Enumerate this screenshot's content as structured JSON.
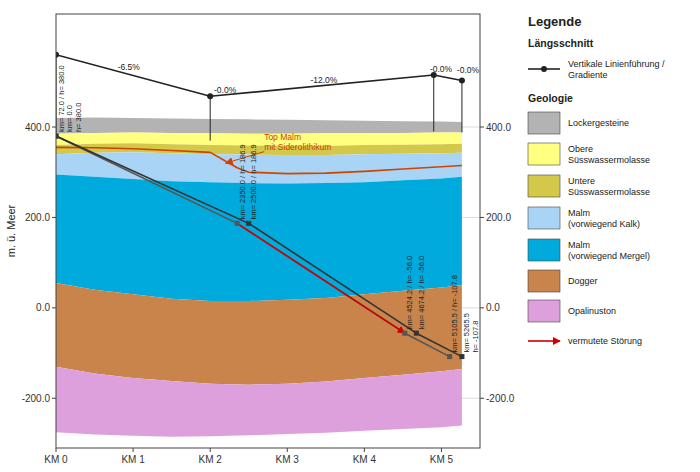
{
  "chart_data": {
    "type": "area",
    "ylabel": "m. ü. Meer",
    "xlim": [
      0,
      5500
    ],
    "ylim": [
      -310,
      650
    ],
    "xticks": [
      {
        "value": 0,
        "label": "KM 0"
      },
      {
        "value": 1000,
        "label": "KM 1"
      },
      {
        "value": 2000,
        "label": "KM 2"
      },
      {
        "value": 3000,
        "label": "KM 3"
      },
      {
        "value": 4000,
        "label": "KM 4"
      },
      {
        "value": 5000,
        "label": "KM 5"
      }
    ],
    "yticks": [
      {
        "value": -200,
        "label": "-200.0"
      },
      {
        "value": 0,
        "label": "0.0"
      },
      {
        "value": 200,
        "label": "200.0"
      },
      {
        "value": 400,
        "label": "400.0"
      }
    ],
    "y2lim": [
      -310,
      650
    ],
    "y2ticks": [
      {
        "value": -200,
        "label": "-200.0"
      },
      {
        "value": 0,
        "label": "0.0"
      },
      {
        "value": 200,
        "label": "200.0"
      },
      {
        "value": 400,
        "label": "400.0"
      }
    ],
    "grid": true,
    "legend": "right",
    "legend_title": "Legende",
    "series": [
      {
        "name": "Vertikale Linienführung /\nGradiente",
        "group": "Längsschnitt",
        "type": "line",
        "color": "#222222",
        "marker": "circle",
        "x": [
          0,
          2000,
          4900,
          5265.5
        ],
        "values": [
          560,
          468,
          515,
          503
        ],
        "base": [
          380,
          370,
          390,
          388
        ]
      },
      {
        "name": "Lockergesteine",
        "group": "Geologie",
        "type": "area",
        "color": "#b3b3b3",
        "x": [
          0,
          500,
          1000,
          1500,
          2000,
          2500,
          3000,
          3500,
          4000,
          4500,
          5000,
          5265
        ],
        "values": [
          420,
          421,
          420,
          419,
          418,
          417,
          416,
          415,
          414,
          413,
          412,
          411
        ],
        "base": [
          385,
          387,
          388,
          387,
          386,
          385,
          385,
          386,
          386,
          387,
          388,
          388
        ]
      },
      {
        "name": "Obere\nSüsswassermolasse",
        "group": "Geologie",
        "type": "area",
        "color": "#ffff80",
        "x": [
          0,
          500,
          1000,
          1500,
          2000,
          2500,
          3000,
          3500,
          4000,
          4500,
          5000,
          5265
        ],
        "values": [
          385,
          387,
          388,
          387,
          386,
          385,
          385,
          386,
          386,
          387,
          388,
          388
        ],
        "base": [
          360,
          363,
          364,
          362,
          360,
          359,
          358,
          358,
          360,
          361,
          362,
          363
        ]
      },
      {
        "name": "Untere\nSüsswassermolasse",
        "group": "Geologie",
        "type": "area",
        "color": "#d4c84a",
        "x": [
          0,
          500,
          1000,
          1500,
          2000,
          2500,
          3000,
          3500,
          4000,
          4500,
          5000,
          5265
        ],
        "values": [
          360,
          363,
          364,
          362,
          360,
          359,
          358,
          358,
          360,
          361,
          362,
          363
        ],
        "base": [
          340,
          343,
          344,
          342,
          340,
          339,
          338,
          338,
          340,
          341,
          342,
          343
        ]
      },
      {
        "name": "Malm\n(vorwiegend Kalk)",
        "group": "Geologie",
        "type": "area",
        "color": "#aad4f5",
        "x": [
          0,
          500,
          1000,
          1500,
          2000,
          2500,
          3000,
          3500,
          4000,
          4500,
          5000,
          5265
        ],
        "values": [
          340,
          343,
          344,
          342,
          340,
          339,
          338,
          338,
          340,
          341,
          342,
          343
        ],
        "base": [
          295,
          290,
          285,
          280,
          278,
          276,
          275,
          276,
          278,
          282,
          286,
          290
        ]
      },
      {
        "name": "Malm\n(vorwiegend Mergel)",
        "group": "Geologie",
        "type": "area",
        "color": "#00aadd",
        "x": [
          0,
          500,
          1000,
          1500,
          2000,
          2500,
          3000,
          3500,
          4000,
          4500,
          5000,
          5265
        ],
        "values": [
          295,
          290,
          285,
          280,
          278,
          276,
          275,
          276,
          278,
          282,
          286,
          290
        ],
        "base": [
          55,
          40,
          30,
          20,
          15,
          15,
          18,
          22,
          30,
          38,
          45,
          50
        ]
      },
      {
        "name": "Dogger",
        "group": "Geologie",
        "type": "area",
        "color": "#c8844a",
        "x": [
          0,
          500,
          1000,
          1500,
          2000,
          2500,
          3000,
          3500,
          4000,
          4500,
          5000,
          5265
        ],
        "values": [
          55,
          40,
          30,
          20,
          15,
          15,
          18,
          22,
          30,
          38,
          45,
          50
        ],
        "base": [
          -130,
          -145,
          -155,
          -162,
          -168,
          -170,
          -168,
          -163,
          -155,
          -148,
          -140,
          -135
        ]
      },
      {
        "name": "Opalinuston",
        "group": "Geologie",
        "type": "area",
        "color": "#dda0dd",
        "x": [
          0,
          500,
          1000,
          1500,
          2000,
          2500,
          3000,
          3500,
          4000,
          4500,
          5000,
          5265
        ],
        "values": [
          -130,
          -145,
          -155,
          -162,
          -168,
          -170,
          -168,
          -163,
          -155,
          -148,
          -140,
          -135
        ],
        "base": [
          -275,
          -280,
          -283,
          -285,
          -284,
          -282,
          -279,
          -276,
          -272,
          -268,
          -264,
          -260
        ]
      },
      {
        "name": "vermutete Störung",
        "group": "Geologie",
        "type": "line",
        "color": "#cc0000",
        "marker": "arrow",
        "x": [
          2350,
          4524.2
        ],
        "values": [
          186.9,
          -56.0
        ]
      },
      {
        "type": "line",
        "color": "#cc4400",
        "x": [
          0,
          500,
          1000,
          1500,
          2000,
          2350,
          2500,
          3000,
          3500,
          4000,
          4500,
          5000,
          5265
        ],
        "values": [
          355,
          354,
          352,
          348,
          344,
          310,
          300,
          297,
          298,
          302,
          307,
          312,
          315
        ]
      },
      {
        "type": "line",
        "color": "#555555",
        "marker": "square",
        "x": [
          0,
          2350,
          4524.2,
          5105.5
        ],
        "values": [
          380,
          186.9,
          -56.0,
          -107.8
        ]
      },
      {
        "type": "line",
        "color": "#333333",
        "marker": "square",
        "x": [
          0,
          2500,
          4674.2,
          5265.5
        ],
        "values": [
          380,
          186.9,
          -56.0,
          -107.8
        ]
      }
    ],
    "annotations": [
      {
        "text": "-6.5%",
        "x": 800,
        "y": 527
      },
      {
        "text": "-0.0%",
        "x": 2050,
        "y": 475
      },
      {
        "text": "-12.0%",
        "x": 3300,
        "y": 498
      },
      {
        "text": "-0.0%",
        "x": 4850,
        "y": 522
      },
      {
        "text": "-0.0%",
        "x": 5200,
        "y": 520
      },
      {
        "text": "Top Malm\nmit Siderolithikum",
        "x": 2700,
        "y": 350,
        "color": "#cc4400",
        "arrow_x": 2200,
        "arrow_y": 320
      }
    ],
    "node_labels": [
      {
        "x": 0,
        "y": 380,
        "texts": [
          "km= 72.0 / h= 380.0",
          "km= 0.0",
          "h= 380.0"
        ]
      },
      {
        "x": 2350,
        "y": 186.9,
        "texts": [
          "km= 2350.0 / h= 186.9"
        ]
      },
      {
        "x": 2500,
        "y": 186.9,
        "texts": [
          "km= 2500.0 / h= 186.9"
        ]
      },
      {
        "x": 4524.2,
        "y": -56.0,
        "texts": [
          "km= 4524.2 / h= -56.0"
        ]
      },
      {
        "x": 4674.2,
        "y": -56.0,
        "texts": [
          "km= 4674.2 / h= -56.0"
        ]
      },
      {
        "x": 5105.5,
        "y": -107.8,
        "texts": [
          "km= 5105.5 / h= -107.8"
        ]
      },
      {
        "x": 5265.5,
        "y": -107.8,
        "texts": [
          "km= 5265.5",
          "h= -107.8"
        ]
      }
    ]
  }
}
